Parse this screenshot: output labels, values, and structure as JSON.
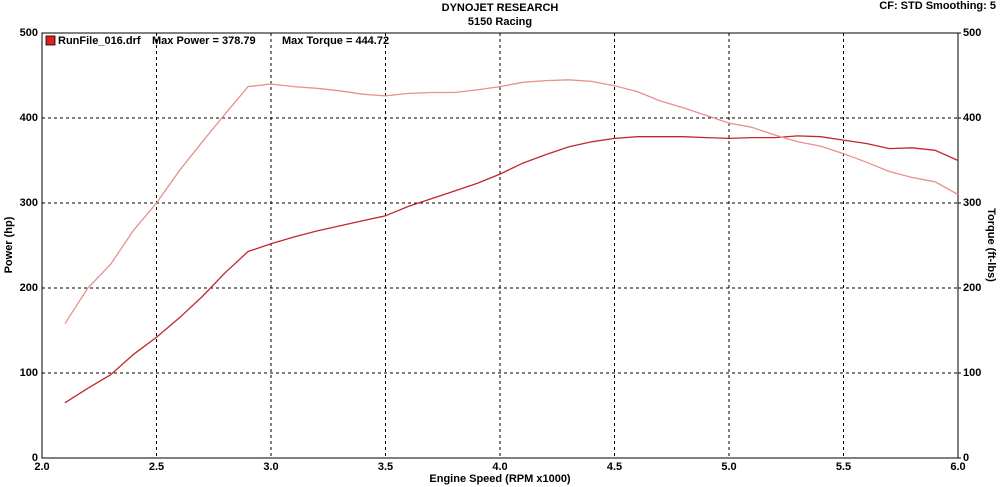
{
  "chart_data": {
    "type": "line",
    "title": "DYNOJET RESEARCH",
    "subtitle": "5150 Racing",
    "settings_label": "CF: STD  Smoothing: 5",
    "legend": {
      "name": "RunFile_016.drf",
      "max_power_label": "Max Power = 378.79",
      "max_torque_label": "Max Torque = 444.72",
      "color": "#e02020"
    },
    "xlabel": "Engine Speed (RPM x1000)",
    "ylabel": "Power (hp)",
    "y2label": "Torque (ft-lbs)",
    "x": [
      2.1,
      2.2,
      2.3,
      2.4,
      2.5,
      2.6,
      2.7,
      2.8,
      2.9,
      3.0,
      3.1,
      3.2,
      3.3,
      3.4,
      3.5,
      3.6,
      3.7,
      3.8,
      3.9,
      4.0,
      4.1,
      4.2,
      4.3,
      4.4,
      4.5,
      4.6,
      4.7,
      4.8,
      4.9,
      5.0,
      5.1,
      5.2,
      5.3,
      5.4,
      5.5,
      5.6,
      5.7,
      5.8,
      5.9,
      6.0
    ],
    "series": [
      {
        "color": "#c0282c",
        "values": [
          65,
          82,
          98,
          122,
          142,
          165,
          190,
          218,
          243,
          252,
          260,
          267,
          273,
          279,
          285,
          296,
          305,
          314,
          323,
          334,
          347,
          357,
          366,
          372,
          376,
          378,
          378,
          378,
          377,
          376,
          377,
          377,
          379,
          378,
          374,
          370,
          364,
          365,
          362,
          350
        ]
      },
      {
        "color": "#e8908c",
        "axis": "y2",
        "values": [
          158,
          200,
          228,
          268,
          300,
          338,
          372,
          405,
          437,
          440,
          437,
          435,
          432,
          428,
          426,
          429,
          430,
          430,
          433,
          437,
          442,
          444,
          445,
          443,
          438,
          431,
          420,
          412,
          403,
          394,
          389,
          380,
          372,
          367,
          358,
          348,
          337,
          330,
          325,
          310
        ]
      }
    ],
    "xlim": [
      2,
      6
    ],
    "xticks": [
      {
        "value": 2,
        "label": "2.0"
      },
      {
        "value": 2.5,
        "label": "2.5"
      },
      {
        "value": 3,
        "label": "3.0"
      },
      {
        "value": 3.5,
        "label": "3.5"
      },
      {
        "value": 4,
        "label": "4.0"
      },
      {
        "value": 4.5,
        "label": "4.5"
      },
      {
        "value": 5,
        "label": "5.0"
      },
      {
        "value": 5.5,
        "label": "5.5"
      },
      {
        "value": 6,
        "label": "6.0"
      }
    ],
    "ylim": [
      0,
      500
    ],
    "yticks": [
      0,
      100,
      200,
      300,
      400,
      500
    ],
    "y2lim": [
      0,
      500
    ],
    "y2ticks": [
      0,
      100,
      200,
      300,
      400,
      500
    ],
    "grid": true
  }
}
